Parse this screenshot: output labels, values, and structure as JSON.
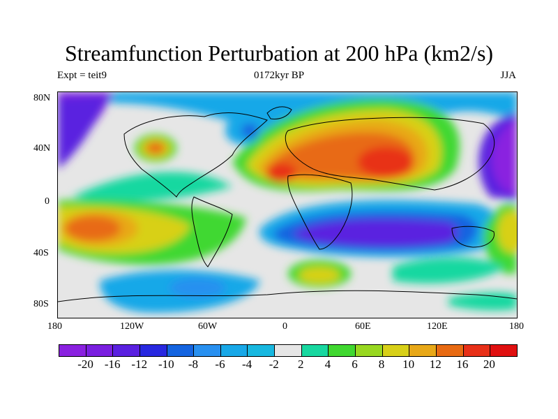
{
  "title": "Streamfunction Perturbation at 200 hPa (km2/s)",
  "subtitle_left": "Expt = teit9",
  "subtitle_center": "0172kyr BP",
  "subtitle_right": "JJA",
  "y_ticks": [
    "80N",
    "40N",
    "0",
    "40S",
    "80S"
  ],
  "x_ticks": [
    "180",
    "120W",
    "60W",
    "0",
    "60E",
    "120E",
    "180"
  ],
  "legend": {
    "colors": [
      "#8a21e0",
      "#7a1fe0",
      "#5a20e0",
      "#2828e0",
      "#1464e0",
      "#2890f0",
      "#18a8e8",
      "#18b8e0",
      "#e6e6e6",
      "#18d8a0",
      "#40d830",
      "#98d820",
      "#d8d018",
      "#e8a818",
      "#e86a12",
      "#e83018",
      "#e01010"
    ],
    "labels": [
      "-20",
      "-16",
      "-12",
      "-10",
      "-8",
      "-6",
      "-4",
      "-2",
      "2",
      "4",
      "6",
      "8",
      "10",
      "12",
      "16",
      "20"
    ]
  }
}
